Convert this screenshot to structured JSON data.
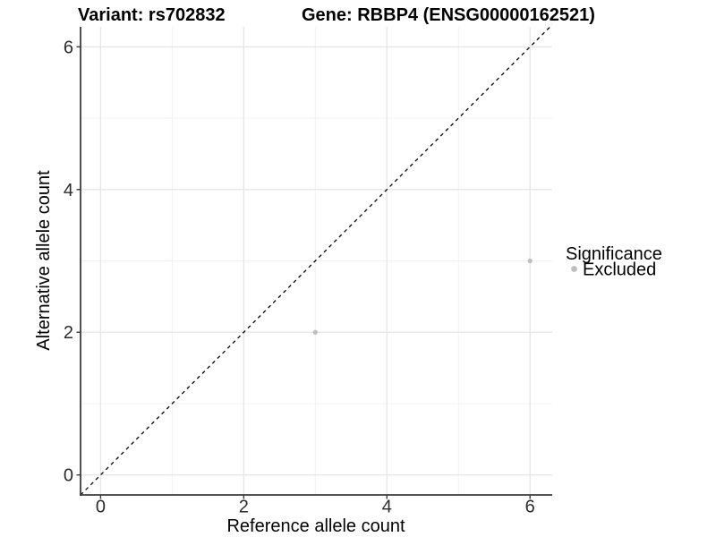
{
  "titles": {
    "variant": "Variant: rs702832",
    "gene": "Gene: RBBP4 (ENSG00000162521)"
  },
  "legend": {
    "title": "Significance",
    "items": [
      {
        "label": "Excluded",
        "color": "#bebebe",
        "marker": "circle"
      }
    ]
  },
  "colors": {
    "background": "#ffffff",
    "point": "#bebebe",
    "grid_major": "#e7e7e7",
    "grid_minor": "#f1f1f1",
    "axis_line": "#3c3c3c",
    "tick_mark": "#3c3c3c",
    "tick_label": "#2b2b2b",
    "text": "#000000",
    "reference_line": "#000000"
  },
  "chart_data": {
    "type": "scatter",
    "title_left": "Variant: rs702832",
    "title_right": "Gene: RBBP4 (ENSG00000162521)",
    "xlabel": "Reference allele count",
    "ylabel": "Alternative allele count",
    "x_ticks": [
      0,
      2,
      4,
      6
    ],
    "y_ticks": [
      0,
      2,
      4,
      6
    ],
    "x_minor_ticks": [
      1,
      3,
      5
    ],
    "y_minor_ticks": [
      1,
      3,
      5
    ],
    "xlim": [
      -0.28,
      6.31
    ],
    "ylim": [
      -0.28,
      6.28
    ],
    "grid": "major+minor",
    "legend_position": "right",
    "series": [
      {
        "name": "Excluded",
        "color": "#bebebe",
        "points": [
          {
            "x": 3,
            "y": 2
          },
          {
            "x": 6,
            "y": 3
          }
        ]
      }
    ],
    "reference_line": {
      "type": "identity y=x",
      "style": "dashed",
      "color": "#000000"
    }
  }
}
